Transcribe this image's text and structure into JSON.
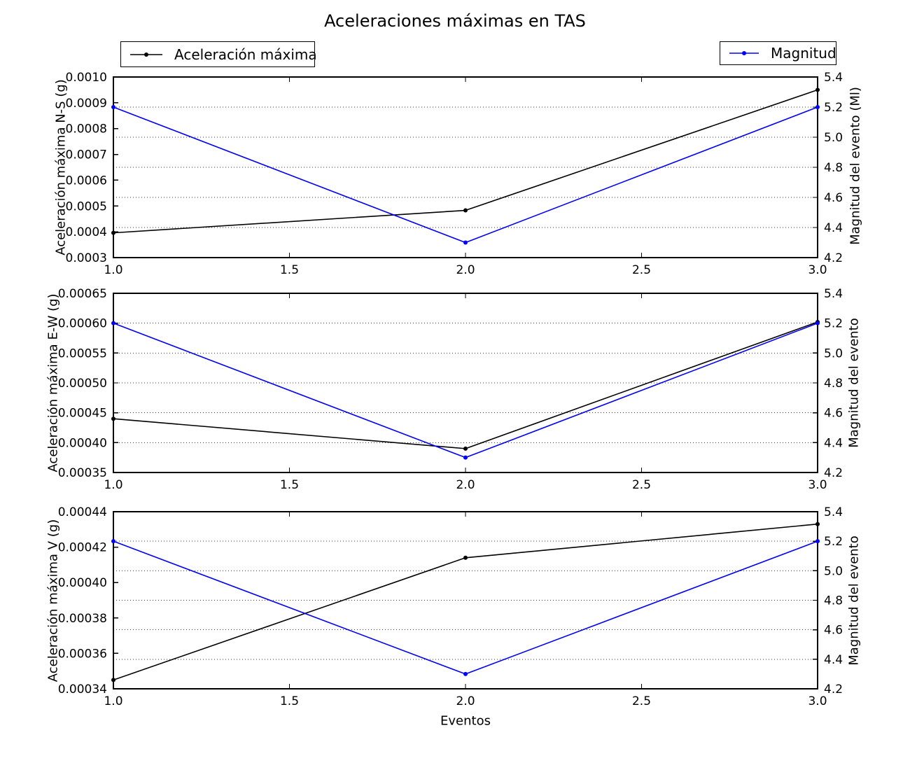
{
  "figure": {
    "title": "Aceleraciones máximas en TAS",
    "xlabel": "Eventos",
    "colors": {
      "aceleracion_line": "#000000",
      "magnitud_line": "#0000ff",
      "grid": "#3a3a3a",
      "background": "#ffffff"
    }
  },
  "legends": [
    {
      "label": "Aceleración máxima",
      "color": "#000000"
    },
    {
      "label": "Magnitud",
      "color": "#0000ff"
    }
  ],
  "chart_data": [
    {
      "type": "line",
      "x": [
        1,
        2,
        3
      ],
      "xlim": [
        1.0,
        3.0
      ],
      "xtick_labels": [
        "1.0",
        "1.5",
        "2.0",
        "2.5",
        "3.0"
      ],
      "ylabel_left": "Aceleración máxima N-S (g)",
      "ylabel_right": "Magnitud del evento (Ml)",
      "ylim_left": [
        0.0003,
        0.001
      ],
      "ytick_labels_left": [
        "0.0003",
        "0.0004",
        "0.0005",
        "0.0006",
        "0.0007",
        "0.0008",
        "0.0009",
        "0.0010"
      ],
      "ylim_right": [
        4.2,
        5.4
      ],
      "ytick_labels_right": [
        "4.2",
        "4.4",
        "4.6",
        "4.8",
        "5.0",
        "5.2",
        "5.4"
      ],
      "grid": "horizontal dotted lines at right-axis ticks",
      "series": [
        {
          "name": "Aceleración máxima",
          "axis": "left",
          "color": "#000000",
          "values": [
            0.000396,
            0.000483,
            0.00095
          ]
        },
        {
          "name": "Magnitud",
          "axis": "right",
          "color": "#0000ff",
          "values": [
            5.2,
            4.3,
            5.2
          ]
        }
      ]
    },
    {
      "type": "line",
      "x": [
        1,
        2,
        3
      ],
      "xlim": [
        1.0,
        3.0
      ],
      "xtick_labels": [
        "1.0",
        "1.5",
        "2.0",
        "2.5",
        "3.0"
      ],
      "ylabel_left": "Aceleración máxima E-W (g)",
      "ylabel_right": "Magnitud del evento",
      "ylim_left": [
        0.00035,
        0.00065
      ],
      "ytick_labels_left": [
        "0.00035",
        "0.00040",
        "0.00045",
        "0.00050",
        "0.00055",
        "0.00060",
        "0.00065"
      ],
      "ylim_right": [
        4.2,
        5.4
      ],
      "ytick_labels_right": [
        "4.2",
        "4.4",
        "4.6",
        "4.8",
        "5.0",
        "5.2",
        "5.4"
      ],
      "grid": "horizontal dotted lines at right-axis ticks",
      "series": [
        {
          "name": "Aceleración máxima",
          "axis": "left",
          "color": "#000000",
          "values": [
            0.00044,
            0.00039,
            0.000602
          ]
        },
        {
          "name": "Magnitud",
          "axis": "right",
          "color": "#0000ff",
          "values": [
            5.2,
            4.3,
            5.2
          ]
        }
      ]
    },
    {
      "type": "line",
      "x": [
        1,
        2,
        3
      ],
      "xlim": [
        1.0,
        3.0
      ],
      "xtick_labels": [
        "1.0",
        "1.5",
        "2.0",
        "2.5",
        "3.0"
      ],
      "ylabel_left": "Aceleración máxima V (g)",
      "ylabel_right": "Magnitud del evento",
      "ylim_left": [
        0.00034,
        0.00044
      ],
      "ytick_labels_left": [
        "0.00034",
        "0.00036",
        "0.00038",
        "0.00040",
        "0.00042",
        "0.00044"
      ],
      "ylim_right": [
        4.2,
        5.4
      ],
      "ytick_labels_right": [
        "4.2",
        "4.4",
        "4.6",
        "4.8",
        "5.0",
        "5.2",
        "5.4"
      ],
      "grid": "horizontal dotted lines at right-axis ticks",
      "series": [
        {
          "name": "Aceleración máxima",
          "axis": "left",
          "color": "#000000",
          "values": [
            0.000345,
            0.000414,
            0.000433
          ]
        },
        {
          "name": "Magnitud",
          "axis": "right",
          "color": "#0000ff",
          "values": [
            5.2,
            4.3,
            5.2
          ]
        }
      ]
    }
  ]
}
